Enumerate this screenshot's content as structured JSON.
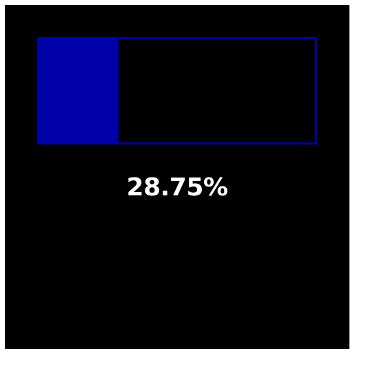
{
  "progress": {
    "value_percent": 28.75,
    "label": "28.75%",
    "fill_color": "#0000a8",
    "track_border_color": "#0000a8",
    "background_color": "#000000",
    "text_color": "#ffffff"
  }
}
